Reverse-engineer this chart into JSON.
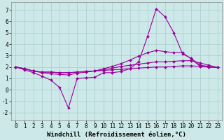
{
  "background_color": "#cce8e8",
  "grid_color": "#aacccc",
  "line_color": "#990099",
  "xlabel": "Windchill (Refroidissement éolien,°C)",
  "xlabel_fontsize": 6.5,
  "xlim": [
    -0.5,
    23.5
  ],
  "ylim": [
    -2.7,
    7.7
  ],
  "yticks": [
    -2,
    -1,
    0,
    1,
    2,
    3,
    4,
    5,
    6,
    7
  ],
  "xticks": [
    0,
    1,
    2,
    3,
    4,
    5,
    6,
    7,
    8,
    9,
    10,
    11,
    12,
    13,
    14,
    15,
    16,
    17,
    18,
    19,
    20,
    21,
    22,
    23
  ],
  "series1_x": [
    0,
    1,
    2,
    3,
    4,
    5,
    6,
    7,
    8,
    9,
    10,
    11,
    12,
    13,
    14,
    15,
    16,
    17,
    18,
    19,
    20,
    21,
    22,
    23
  ],
  "series1_y": [
    2.0,
    1.85,
    1.65,
    1.55,
    1.55,
    1.5,
    1.5,
    1.55,
    1.6,
    1.65,
    1.7,
    1.75,
    1.8,
    1.85,
    1.9,
    1.95,
    2.0,
    2.0,
    2.05,
    2.1,
    2.1,
    2.05,
    2.0,
    1.95
  ],
  "series2_x": [
    0,
    1,
    2,
    3,
    4,
    5,
    6,
    7,
    8,
    9,
    10,
    11,
    12,
    13,
    14,
    15,
    16,
    17,
    18,
    19,
    20,
    21,
    22,
    23
  ],
  "series2_y": [
    2.0,
    1.85,
    1.65,
    1.55,
    1.55,
    1.5,
    1.5,
    1.55,
    1.6,
    1.65,
    1.75,
    1.9,
    2.05,
    2.15,
    2.25,
    2.35,
    2.45,
    2.45,
    2.5,
    2.55,
    2.55,
    2.35,
    2.15,
    1.95
  ],
  "series3_x": [
    0,
    1,
    2,
    3,
    4,
    5,
    6,
    7,
    8,
    9,
    10,
    11,
    12,
    13,
    14,
    15,
    16,
    17,
    18,
    19,
    20,
    21,
    22,
    23
  ],
  "series3_y": [
    2.0,
    1.85,
    1.65,
    1.5,
    1.4,
    1.35,
    1.3,
    1.45,
    1.55,
    1.65,
    1.85,
    2.05,
    2.3,
    2.6,
    2.95,
    3.25,
    3.45,
    3.35,
    3.25,
    3.25,
    2.7,
    2.05,
    2.0,
    1.95
  ],
  "series4_x": [
    0,
    1,
    2,
    3,
    4,
    5,
    6,
    7,
    8,
    9,
    10,
    11,
    12,
    13,
    14,
    15,
    16,
    17,
    18,
    19,
    20,
    21,
    22,
    23
  ],
  "series4_y": [
    2.0,
    1.75,
    1.5,
    1.2,
    0.85,
    0.2,
    -1.6,
    1.0,
    1.05,
    1.1,
    1.5,
    1.5,
    1.6,
    1.85,
    2.45,
    4.65,
    7.1,
    6.4,
    5.0,
    3.15,
    2.75,
    2.15,
    2.05,
    1.95
  ],
  "marker": "D",
  "marker_size": 2.0,
  "linewidth": 0.8,
  "tick_fontsize": 5.5,
  "ylabel_fontsize": 5.5,
  "figsize": [
    3.2,
    2.0
  ],
  "dpi": 100
}
